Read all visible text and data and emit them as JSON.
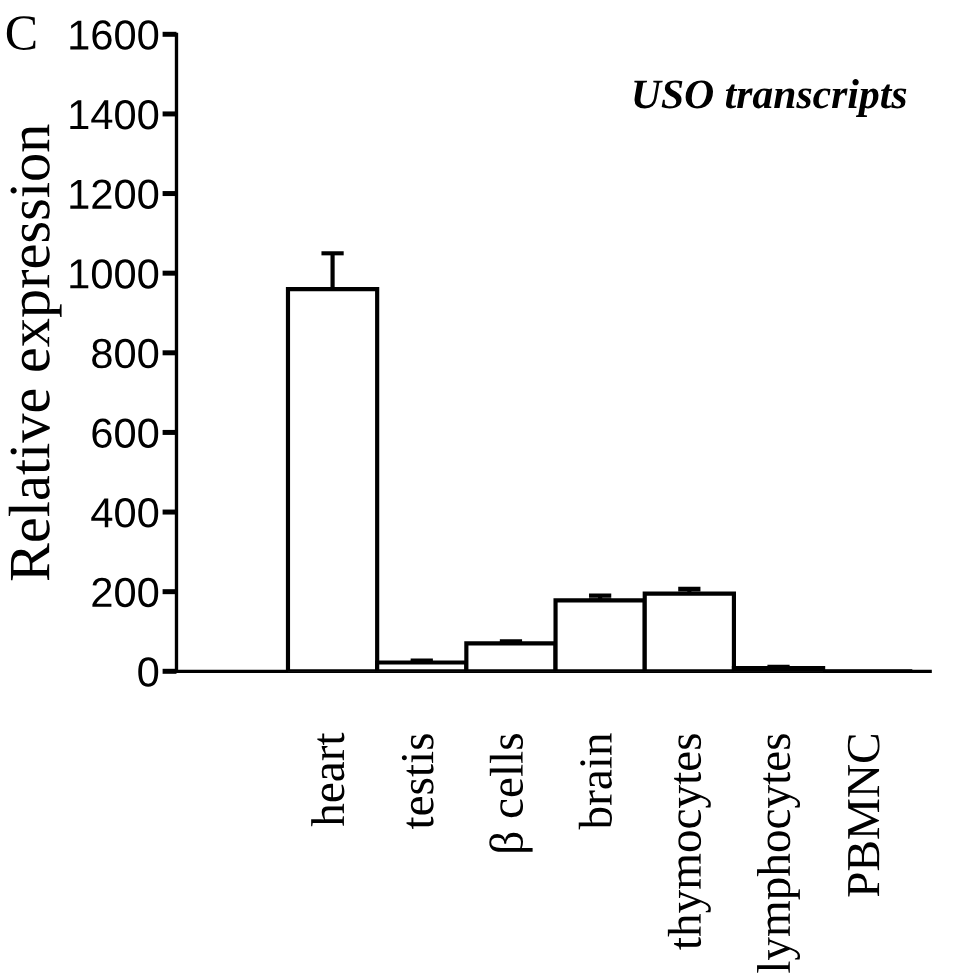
{
  "chart_data": {
    "type": "bar",
    "ylabel": "Relative expression",
    "annotations": [
      "C",
      {
        "text": "USO transcripts"
      }
    ],
    "categories": [
      "heart",
      "testis",
      "β cells",
      "brain",
      "thymocytes",
      "lymphocytes",
      "PBMNC"
    ],
    "values": [
      960,
      22,
      70,
      178,
      195,
      8,
      null
    ],
    "errors": [
      90,
      5,
      5,
      12,
      12,
      3,
      null
    ],
    "color": "#ffffff",
    "ylim": [
      0,
      1600
    ],
    "yticks": [
      0,
      200,
      400,
      600,
      800,
      1000,
      1200,
      1400,
      1600
    ],
    "grid": false,
    "legend": false
  }
}
